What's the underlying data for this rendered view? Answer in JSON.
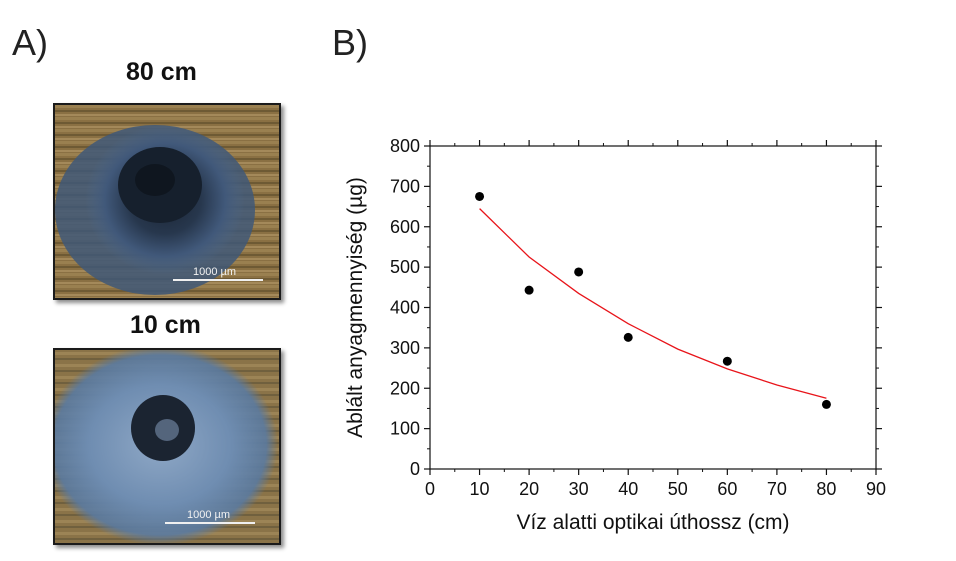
{
  "panels": {
    "a_label": "A)",
    "b_label": "B)"
  },
  "images": [
    {
      "title": "80 cm",
      "scale_bar_label": "1000 µm"
    },
    {
      "title": "10 cm",
      "scale_bar_label": "1000 µm"
    }
  ],
  "chart_data": {
    "type": "scatter",
    "xlabel": "Víz alatti optikai úthossz (cm)",
    "ylabel": "Ablált anyagmennyiség (µg)",
    "xlim": [
      0,
      90
    ],
    "ylim": [
      0,
      800
    ],
    "xticks": [
      0,
      10,
      20,
      30,
      40,
      50,
      60,
      70,
      80,
      90
    ],
    "yticks": [
      0,
      100,
      200,
      300,
      400,
      500,
      600,
      700,
      800
    ],
    "grid": false,
    "series": [
      {
        "kind": "points",
        "x": [
          10,
          20,
          30,
          40,
          60,
          80
        ],
        "y": [
          675,
          443,
          488,
          326,
          267,
          160
        ],
        "color": "#000000"
      },
      {
        "kind": "fit",
        "x": [
          10,
          20,
          30,
          40,
          50,
          60,
          70,
          80
        ],
        "y": [
          645,
          525,
          435,
          360,
          297,
          248,
          208,
          175
        ],
        "color": "#e8141a"
      }
    ]
  }
}
